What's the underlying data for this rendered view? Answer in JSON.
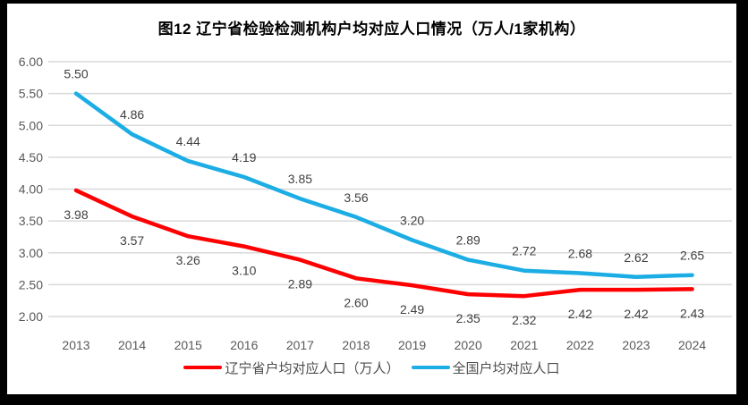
{
  "title": "图12 辽宁省检验检测机构户均对应人口情况（万人/1家机构）",
  "chart_data": {
    "type": "line",
    "title": "图12 辽宁省检验检测机构户均对应人口情况（万人/1家机构）",
    "categories": [
      "2013",
      "2014",
      "2015",
      "2016",
      "2017",
      "2018",
      "2019",
      "2020",
      "2021",
      "2022",
      "2023",
      "2024"
    ],
    "series": [
      {
        "name": "辽宁省户均对应人口（万人）",
        "color": "#FF0000",
        "values": [
          3.98,
          3.57,
          3.26,
          3.1,
          2.89,
          2.6,
          2.49,
          2.35,
          2.32,
          2.42,
          2.42,
          2.43
        ],
        "data_label_position": "below"
      },
      {
        "name": "全国户均对应人口",
        "color": "#1CADE4",
        "values": [
          5.5,
          4.86,
          4.44,
          4.19,
          3.85,
          3.56,
          3.2,
          2.89,
          2.72,
          2.68,
          2.62,
          2.65
        ],
        "data_label_position": "above"
      }
    ],
    "xlabel": "",
    "ylabel": "",
    "ylim": [
      2.0,
      6.0
    ],
    "y_step": 0.5,
    "y_tick_labels": [
      "6.00",
      "5.50",
      "5.00",
      "4.50",
      "4.00",
      "3.50",
      "3.00",
      "2.50",
      "2.00"
    ],
    "grid": true,
    "data_labels": true,
    "legend_position": "bottom"
  },
  "colors": {
    "series_liaoning": "#FF0000",
    "series_national": "#1CADE4",
    "grid_line": "#D9D9D9",
    "axis_text": "#595959",
    "data_label_text": "#404040",
    "title_text": "#000000",
    "legend_text": "#4D4D4D",
    "frame_border": "#000000",
    "background": "#FFFFFF"
  }
}
